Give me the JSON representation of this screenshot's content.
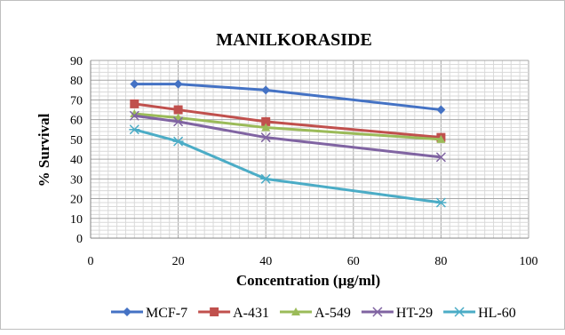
{
  "chart_data": {
    "type": "line",
    "title": "MANILKORASIDE",
    "xlabel": "Concentration (µg/ml)",
    "ylabel": "% Survival",
    "xlim": [
      0,
      100
    ],
    "ylim": [
      0,
      90
    ],
    "x_ticks": [
      "0",
      "20",
      "40",
      "60",
      "80",
      "100"
    ],
    "y_ticks": [
      "0",
      "10",
      "20",
      "30",
      "40",
      "50",
      "60",
      "70",
      "80",
      "90"
    ],
    "grid": true,
    "legend_position": "bottom",
    "series": [
      {
        "name": "MCF-7",
        "color": "#4472C4",
        "marker": "diamond",
        "points": [
          [
            10,
            78
          ],
          [
            20,
            78
          ],
          [
            40,
            75
          ],
          [
            80,
            65
          ]
        ]
      },
      {
        "name": "A-431",
        "color": "#C0504D",
        "marker": "square",
        "points": [
          [
            10,
            68
          ],
          [
            20,
            65
          ],
          [
            40,
            59
          ],
          [
            80,
            51
          ]
        ]
      },
      {
        "name": "A-549",
        "color": "#9BBB59",
        "marker": "triangle",
        "points": [
          [
            10,
            63
          ],
          [
            20,
            61
          ],
          [
            40,
            56
          ],
          [
            80,
            50
          ]
        ]
      },
      {
        "name": "HT-29",
        "color": "#8064A2",
        "marker": "x",
        "points": [
          [
            10,
            62
          ],
          [
            20,
            59
          ],
          [
            40,
            51
          ],
          [
            80,
            41
          ]
        ]
      },
      {
        "name": "HL-60",
        "color": "#4BACC6",
        "marker": "star",
        "points": [
          [
            10,
            55
          ],
          [
            20,
            49
          ],
          [
            40,
            30
          ],
          [
            80,
            18
          ]
        ]
      }
    ]
  }
}
